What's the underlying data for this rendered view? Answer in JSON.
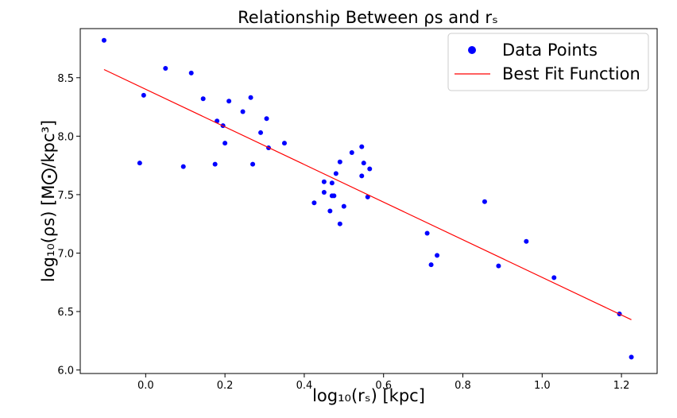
{
  "chart_data": {
    "type": "scatter",
    "title": "Relationship Between ρs and rₛ",
    "xlabel": "log₁₀(rₛ) [kpc]",
    "ylabel": "log₁₀(ρs) [M⨀/kpc³]",
    "xlim": [
      -0.165,
      1.29
    ],
    "ylim": [
      5.97,
      8.92
    ],
    "xticks": [
      0.0,
      0.2,
      0.4,
      0.6,
      0.8,
      1.0,
      1.2
    ],
    "xtick_labels": [
      "0.0",
      "0.2",
      "0.4",
      "0.6",
      "0.8",
      "1.0",
      "1.2"
    ],
    "yticks": [
      6.0,
      6.5,
      7.0,
      7.5,
      8.0,
      8.5
    ],
    "ytick_labels": [
      "6.0",
      "6.5",
      "7.0",
      "7.5",
      "8.0",
      "8.5"
    ],
    "grid": false,
    "legend_position": "top-right",
    "series": [
      {
        "name": "Data Points",
        "kind": "scatter",
        "color": "#0000ff",
        "x": [
          -0.105,
          -0.015,
          -0.005,
          0.05,
          0.095,
          0.115,
          0.145,
          0.175,
          0.18,
          0.195,
          0.2,
          0.21,
          0.245,
          0.265,
          0.27,
          0.29,
          0.305,
          0.31,
          0.35,
          0.425,
          0.45,
          0.45,
          0.465,
          0.47,
          0.47,
          0.475,
          0.48,
          0.49,
          0.49,
          0.5,
          0.52,
          0.545,
          0.545,
          0.55,
          0.56,
          0.565,
          0.71,
          0.72,
          0.735,
          0.855,
          0.89,
          0.96,
          1.03,
          1.195,
          1.225
        ],
        "y": [
          8.82,
          7.77,
          8.35,
          8.58,
          7.74,
          8.54,
          8.32,
          7.76,
          8.13,
          8.09,
          7.94,
          8.3,
          8.21,
          8.33,
          7.76,
          8.03,
          8.15,
          7.9,
          7.94,
          7.43,
          7.52,
          7.61,
          7.36,
          7.6,
          7.49,
          7.49,
          7.68,
          7.78,
          7.25,
          7.4,
          7.86,
          7.91,
          7.66,
          7.77,
          7.48,
          7.72,
          7.17,
          6.9,
          6.98,
          7.44,
          6.89,
          7.1,
          6.79,
          6.48,
          6.11
        ]
      },
      {
        "name": "Best Fit Function",
        "kind": "line",
        "color": "#ff0000",
        "x": [
          -0.105,
          1.225
        ],
        "y": [
          8.57,
          6.43
        ]
      }
    ]
  }
}
